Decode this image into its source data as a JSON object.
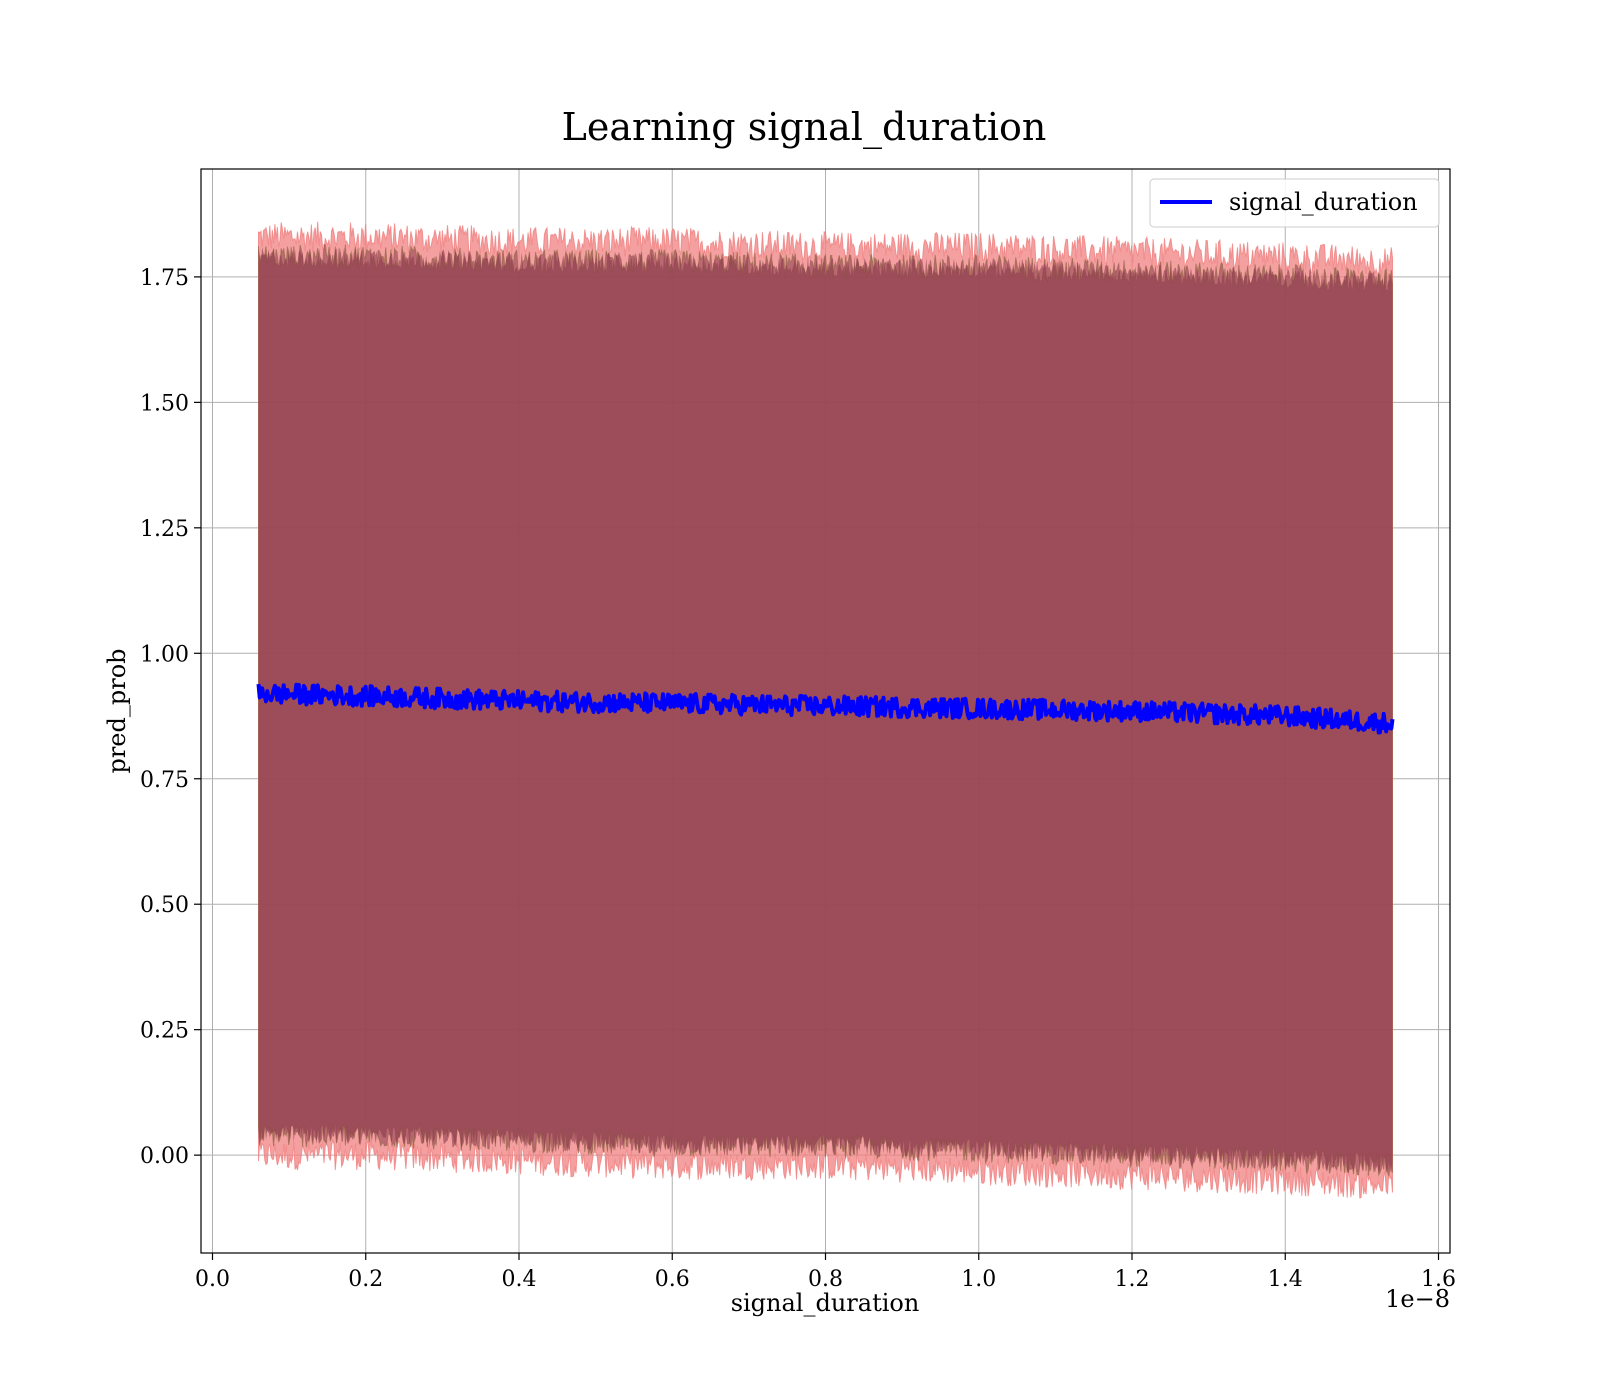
{
  "chart_data": {
    "type": "line",
    "title": "Learning signal_duration",
    "xlabel": "signal_duration",
    "ylabel": "pred_prob",
    "x_offset_label": "1e−8",
    "x_scale": 1e-08,
    "xlim": [
      -0.015,
      1.615
    ],
    "ylim": [
      -0.195,
      1.965
    ],
    "x_ticks": [
      0.0,
      0.2,
      0.4,
      0.6,
      0.8,
      1.0,
      1.2,
      1.4,
      1.6
    ],
    "x_tick_labels": [
      "0.0",
      "0.2",
      "0.4",
      "0.6",
      "0.8",
      "1.0",
      "1.2",
      "1.4",
      "1.6"
    ],
    "y_ticks": [
      0.0,
      0.25,
      0.5,
      0.75,
      1.0,
      1.25,
      1.5,
      1.75
    ],
    "y_tick_labels": [
      "0.00",
      "0.25",
      "0.50",
      "0.75",
      "1.00",
      "1.25",
      "1.50",
      "1.75"
    ],
    "grid": true,
    "legend_position": "top-right",
    "series": [
      {
        "name": "signal_duration",
        "color": "#0000ff",
        "x": [
          0.06,
          0.2,
          0.4,
          0.6,
          0.8,
          1.0,
          1.2,
          1.4,
          1.54
        ],
        "y": [
          0.92,
          0.915,
          0.905,
          0.9,
          0.895,
          0.89,
          0.885,
          0.875,
          0.86
        ]
      }
    ],
    "bands": [
      {
        "color": "#8b3a4a",
        "x": [
          0.06,
          0.2,
          0.4,
          0.6,
          0.8,
          1.0,
          1.2,
          1.4,
          1.54
        ],
        "lower": [
          0.04,
          0.04,
          0.03,
          0.02,
          0.02,
          0.01,
          0.0,
          -0.01,
          -0.02
        ],
        "upper": [
          1.79,
          1.79,
          1.78,
          1.78,
          1.77,
          1.77,
          1.76,
          1.75,
          1.74
        ]
      },
      {
        "color": "#f08080",
        "x": [
          0.06,
          0.2,
          0.4,
          0.6,
          0.8,
          1.0,
          1.2,
          1.4,
          1.54
        ],
        "lower": [
          0.0,
          0.0,
          -0.01,
          -0.02,
          -0.02,
          -0.03,
          -0.04,
          -0.05,
          -0.06
        ],
        "upper": [
          1.83,
          1.83,
          1.82,
          1.82,
          1.81,
          1.81,
          1.8,
          1.79,
          1.78
        ]
      }
    ]
  }
}
